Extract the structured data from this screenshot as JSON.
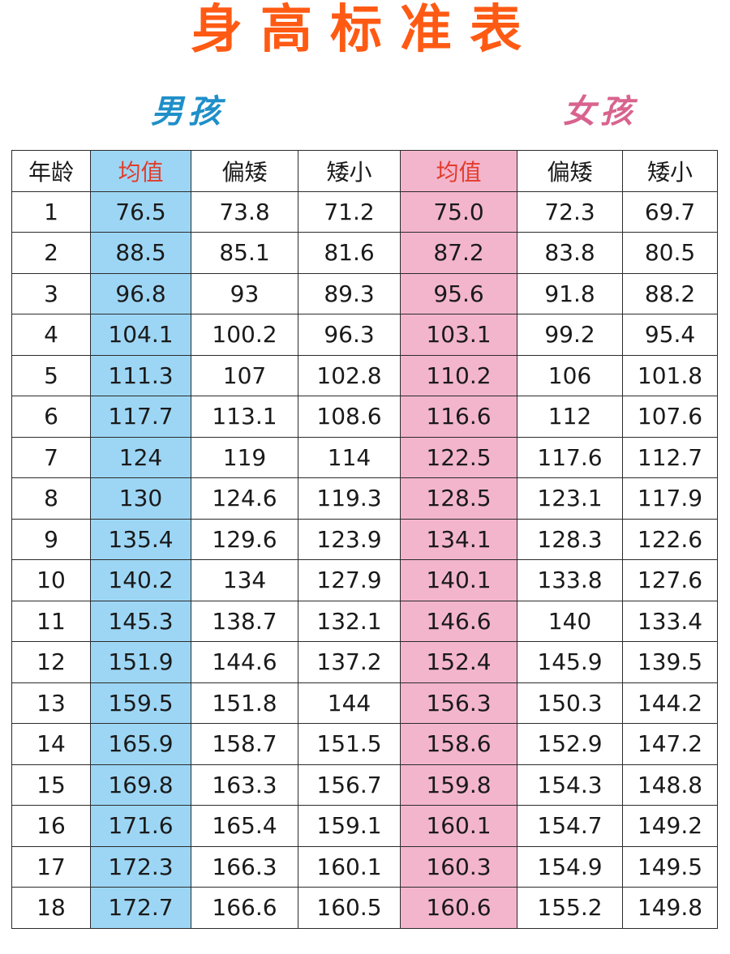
{
  "title": "身高标准表",
  "boy_label": "男孩",
  "girl_label": "女孩",
  "colors": {
    "title": "#ff5a14",
    "boy_label": "#1f8fc9",
    "girl_label": "#d8638e",
    "boy_avg_bg": "#9dd6f5",
    "girl_avg_bg": "#f3b5cc",
    "avg_header_text": "#e33b2a"
  },
  "table": {
    "headers": [
      "年龄",
      "均值",
      "偏矮",
      "矮小",
      "均值",
      "偏矮",
      "矮小"
    ],
    "rows": [
      [
        "1",
        "76.5",
        "73.8",
        "71.2",
        "75.0",
        "72.3",
        "69.7"
      ],
      [
        "2",
        "88.5",
        "85.1",
        "81.6",
        "87.2",
        "83.8",
        "80.5"
      ],
      [
        "3",
        "96.8",
        "93",
        "89.3",
        "95.6",
        "91.8",
        "88.2"
      ],
      [
        "4",
        "104.1",
        "100.2",
        "96.3",
        "103.1",
        "99.2",
        "95.4"
      ],
      [
        "5",
        "111.3",
        "107",
        "102.8",
        "110.2",
        "106",
        "101.8"
      ],
      [
        "6",
        "117.7",
        "113.1",
        "108.6",
        "116.6",
        "112",
        "107.6"
      ],
      [
        "7",
        "124",
        "119",
        "114",
        "122.5",
        "117.6",
        "112.7"
      ],
      [
        "8",
        "130",
        "124.6",
        "119.3",
        "128.5",
        "123.1",
        "117.9"
      ],
      [
        "9",
        "135.4",
        "129.6",
        "123.9",
        "134.1",
        "128.3",
        "122.6"
      ],
      [
        "10",
        "140.2",
        "134",
        "127.9",
        "140.1",
        "133.8",
        "127.6"
      ],
      [
        "11",
        "145.3",
        "138.7",
        "132.1",
        "146.6",
        "140",
        "133.4"
      ],
      [
        "12",
        "151.9",
        "144.6",
        "137.2",
        "152.4",
        "145.9",
        "139.5"
      ],
      [
        "13",
        "159.5",
        "151.8",
        "144",
        "156.3",
        "150.3",
        "144.2"
      ],
      [
        "14",
        "165.9",
        "158.7",
        "151.5",
        "158.6",
        "152.9",
        "147.2"
      ],
      [
        "15",
        "169.8",
        "163.3",
        "156.7",
        "159.8",
        "154.3",
        "148.8"
      ],
      [
        "16",
        "171.6",
        "165.4",
        "159.1",
        "160.1",
        "154.7",
        "149.2"
      ],
      [
        "17",
        "172.3",
        "166.3",
        "160.1",
        "160.3",
        "154.9",
        "149.5"
      ],
      [
        "18",
        "172.7",
        "166.6",
        "160.5",
        "160.6",
        "155.2",
        "149.8"
      ]
    ]
  }
}
